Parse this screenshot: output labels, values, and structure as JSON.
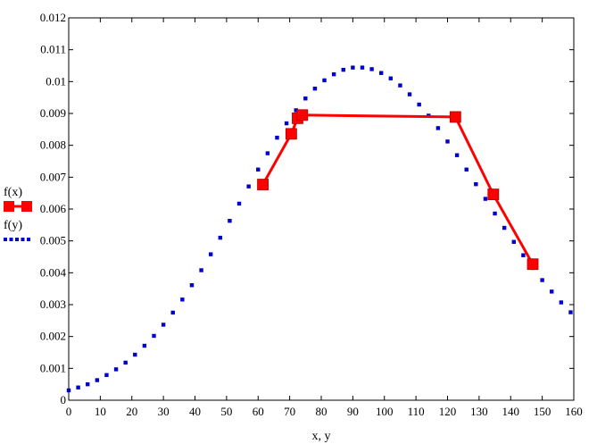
{
  "chart_data": {
    "type": "line",
    "xlabel": "x, y",
    "ylabel": "",
    "xlim": [
      0,
      160
    ],
    "ylim": [
      0,
      0.012
    ],
    "x_ticks": [
      0,
      10,
      20,
      30,
      40,
      50,
      60,
      70,
      80,
      90,
      100,
      110,
      120,
      130,
      140,
      150,
      160
    ],
    "y_ticks": [
      0,
      0.001,
      0.002,
      0.003,
      0.004,
      0.005,
      0.006,
      0.007,
      0.008,
      0.009,
      0.01,
      0.011,
      0.012
    ],
    "y_tick_labels": [
      "0",
      "0.001",
      "0.002",
      "0.003",
      "0.004",
      "0.005",
      "0.006",
      "0.007",
      "0.008",
      "0.009",
      "0.01",
      "0.011",
      "0.012"
    ],
    "grid": false,
    "legend_position": "left",
    "series": [
      {
        "name": "f(x)",
        "style": "solid line with square markers",
        "color": "#ff0000",
        "x": [
          61.5,
          70.5,
          72.5,
          74.0,
          122.5,
          134.5,
          147.0
        ],
        "y": [
          0.00677,
          0.00836,
          0.00885,
          0.00895,
          0.00889,
          0.00646,
          0.00427
        ]
      },
      {
        "name": "f(y)",
        "style": "dotted",
        "color": "#0000cc",
        "x": [
          0,
          3,
          6,
          9,
          12,
          15,
          18,
          21,
          24,
          27,
          30,
          33,
          36,
          39,
          42,
          45,
          48,
          51,
          54,
          57,
          60,
          63,
          66,
          69,
          72,
          75,
          78,
          81,
          84,
          87,
          90,
          93,
          96,
          99,
          102,
          105,
          108,
          111,
          114,
          117,
          120,
          123,
          126,
          129,
          132,
          135,
          138,
          141,
          144,
          147,
          150,
          153,
          156,
          159
        ],
        "y": [
          0.00031,
          0.0004,
          0.0005,
          0.00063,
          0.00079,
          0.00097,
          0.00118,
          0.00143,
          0.00171,
          0.00202,
          0.00237,
          0.00275,
          0.00316,
          0.00361,
          0.00408,
          0.00458,
          0.0051,
          0.00563,
          0.00617,
          0.00671,
          0.00724,
          0.00775,
          0.00824,
          0.00869,
          0.0091,
          0.00947,
          0.00978,
          0.01004,
          0.01023,
          0.01037,
          0.01044,
          0.01044,
          0.01039,
          0.01027,
          0.0101,
          0.00988,
          0.0096,
          0.00928,
          0.00893,
          0.00854,
          0.00812,
          0.00769,
          0.00724,
          0.00678,
          0.00632,
          0.00586,
          0.00541,
          0.00497,
          0.00455,
          0.00415,
          0.00377,
          0.00341,
          0.00307,
          0.00276
        ]
      }
    ]
  }
}
